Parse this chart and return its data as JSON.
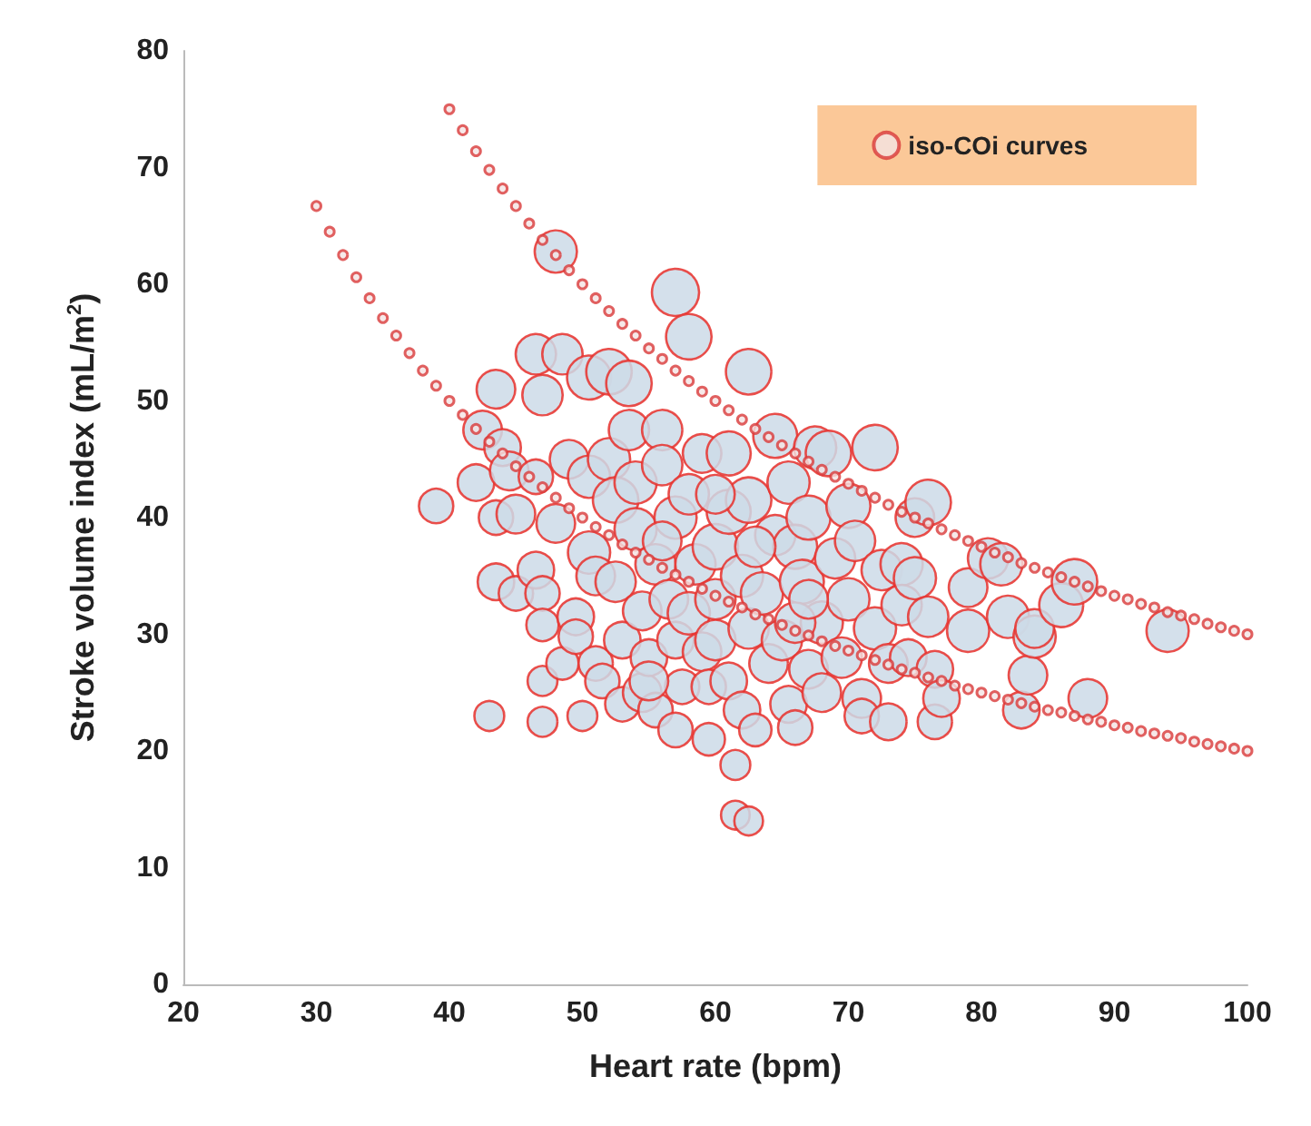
{
  "chart_data": {
    "type": "bubble",
    "xlabel": "Heart rate (bpm)",
    "ylabel": "Stroke volume index (mL/m$^{2}$)",
    "xlim": [
      20,
      100
    ],
    "xticks": [
      20,
      30,
      40,
      50,
      60,
      70,
      80,
      90,
      100
    ],
    "ylim": [
      0,
      80
    ],
    "yticks": [
      0,
      10,
      20,
      30,
      40,
      50,
      60,
      70,
      80
    ],
    "grid": false,
    "legend": "top right",
    "series": [
      {
        "color": "#cddbe7",
        "x": [
          39,
          42,
          42.5,
          43.5,
          43,
          43.5,
          43.5,
          44,
          44.5,
          45,
          45,
          46.5,
          47,
          46.5,
          46.5,
          47,
          47,
          47,
          47,
          48,
          48.5,
          48,
          48.5,
          49,
          49.5,
          49.5,
          50,
          50.5,
          50.5,
          50.5,
          51,
          51,
          51.5,
          52,
          52,
          52.5,
          52.5,
          53,
          53,
          53.5,
          53.5,
          54,
          54,
          54.5,
          54.5,
          55,
          55.5,
          55.5,
          56,
          56,
          56.5,
          57,
          57,
          57,
          57,
          57.5,
          58,
          58,
          58,
          58.5,
          59,
          59,
          59.5,
          59.5,
          60,
          60,
          60,
          61,
          61,
          61,
          61.5,
          61.5,
          62.5,
          62,
          62,
          62.5,
          62.5,
          62.5,
          63,
          63.5,
          64,
          64.5,
          64.5,
          65,
          65.5,
          65.5,
          66,
          66,
          66.5,
          67,
          67,
          67.5,
          68,
          68,
          68.5,
          69,
          69.5,
          70,
          70,
          70.5,
          71,
          71,
          72,
          72,
          72.5,
          73,
          73,
          74,
          74,
          74.5,
          75,
          75,
          76,
          76,
          76.5,
          76.5,
          77,
          79,
          79,
          80.5,
          81.5,
          82,
          83,
          83.5,
          84,
          84,
          86,
          87,
          88,
          94,
          55,
          56,
          63,
          66,
          60,
          67
        ],
        "values": [
          41,
          43,
          47.5,
          51,
          23,
          40,
          34.5,
          46,
          44,
          40.3,
          33.5,
          54,
          50.5,
          43.5,
          35.5,
          33.5,
          30.8,
          26,
          22.5,
          62.8,
          54,
          39.5,
          27.5,
          45,
          31.5,
          29.8,
          23,
          52,
          43.5,
          37,
          35,
          27.5,
          26,
          52.5,
          45,
          41.5,
          34.5,
          29.5,
          24,
          51.5,
          47.5,
          43,
          39,
          32,
          25,
          28,
          36,
          23.5,
          47.5,
          44.5,
          33,
          59.3,
          40,
          29.5,
          21.8,
          25.5,
          55.5,
          42,
          31.8,
          36,
          45.5,
          28.5,
          25.5,
          21,
          37.5,
          33,
          29.5,
          40.5,
          45.5,
          26,
          18.8,
          14.5,
          14,
          35,
          23.5,
          52.5,
          41.5,
          30.5,
          21.8,
          33.5,
          27.5,
          47,
          38.5,
          29.5,
          24,
          43,
          37.5,
          22,
          34.5,
          40,
          27,
          46,
          31,
          25,
          45.5,
          36.5,
          28,
          33,
          41,
          38,
          24.5,
          23,
          46,
          30.5,
          35.5,
          27.5,
          22.5,
          36,
          32.5,
          28,
          34.8,
          40,
          41.3,
          31.5,
          27,
          22.5,
          24.5,
          30.3,
          34,
          36.5,
          36,
          31.5,
          23.5,
          26.5,
          29.8,
          30.5,
          32.5,
          34.5,
          24.5,
          30.3,
          26,
          38,
          37.5,
          31,
          42,
          33
        ],
        "sizes": [
          0.53,
          0.6,
          0.67,
          0.67,
          0.4,
          0.53,
          0.6,
          0.6,
          0.67,
          0.67,
          0.53,
          0.73,
          0.73,
          0.53,
          0.6,
          0.53,
          0.47,
          0.4,
          0.4,
          0.8,
          0.73,
          0.67,
          0.47,
          0.67,
          0.6,
          0.53,
          0.4,
          0.87,
          0.8,
          0.8,
          0.67,
          0.53,
          0.53,
          0.93,
          0.8,
          0.93,
          0.73,
          0.6,
          0.53,
          0.93,
          0.73,
          0.8,
          0.8,
          0.67,
          0.67,
          0.6,
          0.73,
          0.53,
          0.73,
          0.73,
          0.67,
          1,
          0.8,
          0.6,
          0.53,
          0.53,
          0.93,
          0.73,
          0.8,
          0.73,
          0.67,
          0.67,
          0.53,
          0.47,
          0.93,
          0.73,
          0.73,
          0.87,
          0.87,
          0.6,
          0.4,
          0.37,
          0.37,
          0.8,
          0.6,
          0.93,
          0.93,
          0.73,
          0.47,
          0.8,
          0.67,
          0.87,
          0.73,
          0.73,
          0.6,
          0.8,
          0.87,
          0.53,
          0.87,
          0.87,
          0.67,
          0.8,
          0.8,
          0.67,
          0.93,
          0.73,
          0.73,
          0.8,
          0.87,
          0.73,
          0.67,
          0.53,
          0.93,
          0.8,
          0.73,
          0.67,
          0.6,
          0.8,
          0.73,
          0.6,
          0.8,
          0.67,
          0.93,
          0.73,
          0.6,
          0.53,
          0.6,
          0.8,
          0.67,
          0.73,
          0.8,
          0.8,
          0.6,
          0.67,
          0.8,
          0.67,
          0.87,
          0.93,
          0.67,
          0.8,
          0.67,
          0.67,
          0.73,
          0.73,
          0.67,
          0.67
        ]
      },
      {
        "type": "scatter",
        "name": "iso-COi curves",
        "color": "#d93a3a",
        "marker": "circle",
        "x": [
          40,
          41,
          42,
          43,
          44,
          45,
          46,
          47,
          48,
          49,
          50,
          51,
          52,
          53,
          54,
          55,
          56,
          57,
          58,
          59,
          60,
          61,
          62,
          63,
          64,
          65,
          66,
          67,
          68,
          69,
          70,
          71,
          72,
          73,
          74,
          75,
          76,
          77,
          78,
          79,
          80,
          81,
          82,
          83,
          84,
          85,
          86,
          87,
          88,
          89,
          90,
          91,
          92,
          93,
          94,
          95,
          96,
          97,
          98,
          99,
          100
        ],
        "values": [
          75,
          73.2,
          71.4,
          69.8,
          68.2,
          66.7,
          65.2,
          63.8,
          62.5,
          61.2,
          60,
          58.8,
          57.7,
          56.6,
          55.6,
          54.5,
          53.6,
          52.6,
          51.7,
          50.8,
          50,
          49.2,
          48.4,
          47.6,
          46.9,
          46.2,
          45.5,
          44.8,
          44.1,
          43.5,
          42.9,
          42.3,
          41.7,
          41.1,
          40.5,
          40,
          39.5,
          39,
          38.5,
          38,
          37.5,
          37,
          36.6,
          36.1,
          35.7,
          35.3,
          34.9,
          34.5,
          34.1,
          33.7,
          33.3,
          33,
          32.6,
          32.3,
          31.9,
          31.6,
          31.3,
          30.9,
          30.6,
          30.3,
          30
        ]
      },
      {
        "type": "scatter",
        "color": "#d93a3a",
        "marker": "circle",
        "x": [
          30,
          31,
          32,
          33,
          34,
          35,
          36,
          37,
          38,
          39,
          40,
          41,
          42,
          43,
          44,
          45,
          46,
          47,
          48,
          49,
          50,
          51,
          52,
          53,
          54,
          55,
          56,
          57,
          58,
          59,
          60,
          61,
          62,
          63,
          64,
          65,
          66,
          67,
          68,
          69,
          70,
          71,
          72,
          73,
          74,
          75,
          76,
          77,
          78,
          79,
          80,
          81,
          82,
          83,
          84,
          85,
          86,
          87,
          88,
          89,
          90,
          91,
          92,
          93,
          94,
          95,
          96,
          97,
          98,
          99,
          100
        ],
        "values": [
          66.7,
          64.5,
          62.5,
          60.6,
          58.8,
          57.1,
          55.6,
          54.1,
          52.6,
          51.3,
          50,
          48.8,
          47.6,
          46.5,
          45.5,
          44.4,
          43.5,
          42.6,
          41.7,
          40.8,
          40,
          39.2,
          38.5,
          37.7,
          37,
          36.4,
          35.7,
          35.1,
          34.5,
          33.9,
          33.3,
          32.8,
          32.3,
          31.7,
          31.3,
          30.8,
          30.3,
          29.9,
          29.4,
          29,
          28.6,
          28.2,
          27.8,
          27.4,
          27,
          26.7,
          26.3,
          26,
          25.6,
          25.3,
          25,
          24.7,
          24.4,
          24.1,
          23.8,
          23.5,
          23.3,
          23,
          22.7,
          22.5,
          22.2,
          22,
          21.7,
          21.5,
          21.3,
          21.1,
          20.8,
          20.6,
          20.4,
          20.2,
          20
        ]
      }
    ]
  }
}
